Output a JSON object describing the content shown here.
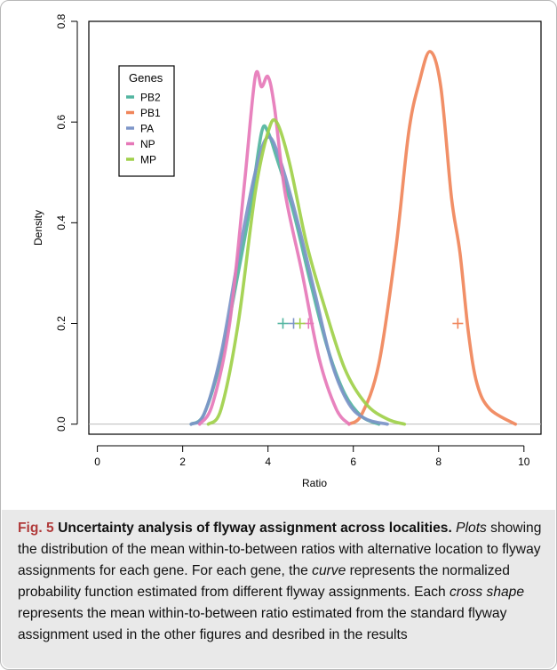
{
  "chart_data": {
    "type": "line",
    "xlabel": "Ratio",
    "ylabel": "Density",
    "xlim": [
      -0.2,
      10.4
    ],
    "ylim": [
      -0.02,
      0.8
    ],
    "x_ticks": [
      "0",
      "2",
      "4",
      "6",
      "8",
      "10"
    ],
    "y_ticks": [
      "0.0",
      "0.2",
      "0.4",
      "0.6",
      "0.8"
    ],
    "legend_title": "Genes",
    "legend_position": "top-left",
    "series": [
      {
        "name": "PB2",
        "color": "#52b5a0",
        "points": [
          [
            2.2,
            0
          ],
          [
            2.5,
            0.02
          ],
          [
            2.9,
            0.13
          ],
          [
            3.3,
            0.3
          ],
          [
            3.6,
            0.44
          ],
          [
            3.85,
            0.58
          ],
          [
            4.0,
            0.58
          ],
          [
            4.2,
            0.53
          ],
          [
            4.6,
            0.42
          ],
          [
            5.0,
            0.28
          ],
          [
            5.4,
            0.15
          ],
          [
            5.8,
            0.06
          ],
          [
            6.2,
            0.015
          ],
          [
            6.6,
            0
          ]
        ],
        "marker": [
          4.35,
          0.2
        ]
      },
      {
        "name": "PB1",
        "color": "#f0855a",
        "points": [
          [
            5.9,
            0
          ],
          [
            6.2,
            0.02
          ],
          [
            6.6,
            0.12
          ],
          [
            7.0,
            0.35
          ],
          [
            7.3,
            0.58
          ],
          [
            7.55,
            0.68
          ],
          [
            7.8,
            0.74
          ],
          [
            8.05,
            0.67
          ],
          [
            8.3,
            0.45
          ],
          [
            8.5,
            0.34
          ],
          [
            8.7,
            0.18
          ],
          [
            8.9,
            0.08
          ],
          [
            9.2,
            0.03
          ],
          [
            9.8,
            0
          ]
        ],
        "marker": [
          8.45,
          0.2
        ]
      },
      {
        "name": "PA",
        "color": "#7d95c8",
        "points": [
          [
            2.2,
            0
          ],
          [
            2.5,
            0.02
          ],
          [
            2.9,
            0.14
          ],
          [
            3.3,
            0.33
          ],
          [
            3.7,
            0.5
          ],
          [
            4.0,
            0.57
          ],
          [
            4.3,
            0.52
          ],
          [
            4.7,
            0.4
          ],
          [
            5.1,
            0.26
          ],
          [
            5.5,
            0.12
          ],
          [
            5.9,
            0.04
          ],
          [
            6.3,
            0.01
          ],
          [
            6.8,
            0
          ]
        ],
        "marker": [
          4.6,
          0.2
        ]
      },
      {
        "name": "NP",
        "color": "#e678b8",
        "points": [
          [
            2.4,
            0
          ],
          [
            2.7,
            0.04
          ],
          [
            3.1,
            0.2
          ],
          [
            3.45,
            0.48
          ],
          [
            3.7,
            0.69
          ],
          [
            3.85,
            0.67
          ],
          [
            4.0,
            0.69
          ],
          [
            4.15,
            0.63
          ],
          [
            4.4,
            0.46
          ],
          [
            4.8,
            0.3
          ],
          [
            5.2,
            0.13
          ],
          [
            5.6,
            0.03
          ],
          [
            5.9,
            0
          ]
        ],
        "marker": [
          4.95,
          0.2
        ]
      },
      {
        "name": "MP",
        "color": "#a0d04a",
        "points": [
          [
            2.6,
            0
          ],
          [
            2.9,
            0.03
          ],
          [
            3.3,
            0.2
          ],
          [
            3.7,
            0.46
          ],
          [
            4.0,
            0.58
          ],
          [
            4.2,
            0.6
          ],
          [
            4.5,
            0.52
          ],
          [
            4.9,
            0.36
          ],
          [
            5.3,
            0.24
          ],
          [
            5.8,
            0.11
          ],
          [
            6.3,
            0.04
          ],
          [
            6.8,
            0.01
          ],
          [
            7.2,
            0
          ]
        ],
        "marker": [
          4.75,
          0.2
        ]
      }
    ]
  },
  "caption": {
    "label": "Fig. 5",
    "lead": " Uncertainty analysis of flyway assignment across localities.",
    "parts": [
      {
        "t": " ",
        "i": false
      },
      {
        "t": "Plots",
        "i": true
      },
      {
        "t": " showing the distribution of the mean within-to-between ratios with alternative location to flyway assignments for each gene. For each gene, the ",
        "i": false
      },
      {
        "t": "curve",
        "i": true
      },
      {
        "t": " represents the normalized probability function estimated from different flyway assignments. Each ",
        "i": false
      },
      {
        "t": "cross shape",
        "i": true
      },
      {
        "t": " represents the mean within-to-between ratio estimated from the standard flyway assignment used in the other figures and desribed in the results",
        "i": false
      }
    ]
  }
}
